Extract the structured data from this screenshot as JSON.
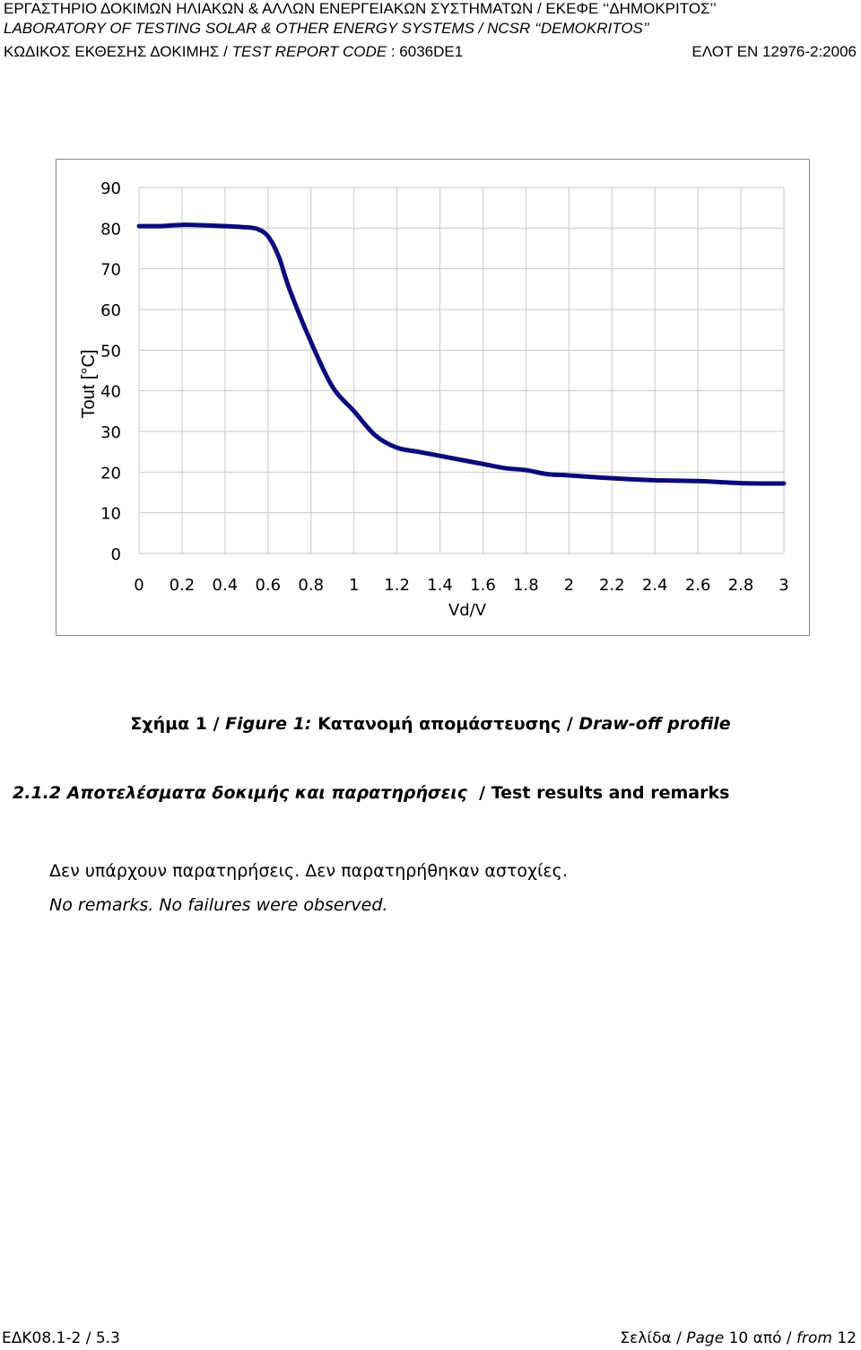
{
  "header": {
    "line1": "ΕΡΓΑΣΤΗΡΙΟ ΔΟΚΙΜΩΝ ΗΛΙΑΚΩΝ & ΑΛΛΩΝ ΕΝΕΡΓΕΙΑΚΩΝ ΣΥΣΤΗΜΑΤΩΝ / ΕΚΕΦΕ ‘‘ΔΗΜΟΚΡΙΤΟΣ’’",
    "line2": "LABORATORY OF TESTING SOLAR & OTHER ENERGY SYSTEMS / NCSR ‘‘DEMOKRITOS’’",
    "code_label_gr": "ΚΩΔΙΚΟΣ ΕΚΘΕΣΗΣ ΔΟΚΙΜΗΣ / ",
    "code_label_en": "TEST REPORT CODE",
    "code_value": " : 6036DE1",
    "standard": "ΕΛΟΤ ΕΝ 12976-2:2006"
  },
  "chart_data": {
    "type": "line",
    "xlabel": "Vd/V",
    "ylabel": "Tout [°C]",
    "xlim": [
      0,
      3
    ],
    "ylim": [
      0,
      90
    ],
    "x_ticks": [
      "0",
      "0.2",
      "0.4",
      "0.6",
      "0.8",
      "1",
      "1.2",
      "1.4",
      "1.6",
      "1.8",
      "2",
      "2.2",
      "2.4",
      "2.6",
      "2.8",
      "3"
    ],
    "y_ticks": [
      "0",
      "10",
      "20",
      "30",
      "40",
      "50",
      "60",
      "70",
      "80",
      "90"
    ],
    "grid": true,
    "line_color": "#0a0a7a",
    "series": [
      {
        "x": [
          0,
          0.1,
          0.2,
          0.3,
          0.4,
          0.5,
          0.55,
          0.6,
          0.65,
          0.7,
          0.8,
          0.9,
          1.0,
          1.1,
          1.2,
          1.3,
          1.4,
          1.5,
          1.6,
          1.7,
          1.8,
          1.9,
          2.0,
          2.2,
          2.4,
          2.6,
          2.8,
          3.0
        ],
        "y": [
          80.5,
          80.5,
          80.8,
          80.7,
          80.5,
          80.2,
          79.8,
          78,
          73,
          65,
          52,
          41,
          35,
          29,
          26,
          25,
          24,
          23,
          22,
          21,
          20.5,
          19.5,
          19.2,
          18.5,
          18,
          17.8,
          17.3,
          17.2
        ]
      }
    ]
  },
  "caption": {
    "gr_prefix": "Σχήμα 1",
    "slash1": " / ",
    "en_prefix": "Figure 1:",
    "gr_title": " Κατανομή απομάστευσης",
    "slash2": " / ",
    "en_title": "Draw-off profile"
  },
  "section": {
    "title_gr": "2.1.2 Αποτελέσματα δοκιμής και παρατηρήσεις",
    "title_en": "  / Test results and remarks"
  },
  "remarks": {
    "gr": "Δεν υπάρχουν παρατηρήσεις. Δεν παρατηρήθηκαν αστοχίες.",
    "en": "No remarks. No failures were observed."
  },
  "footer": {
    "doc_code": "ΕΔΚ08.1-2 / 5.3",
    "page_gr1": "Σελίδα / ",
    "page_en1": "Page",
    "page_num": " 10 από / ",
    "page_en2": "from",
    "page_total": " 12"
  }
}
